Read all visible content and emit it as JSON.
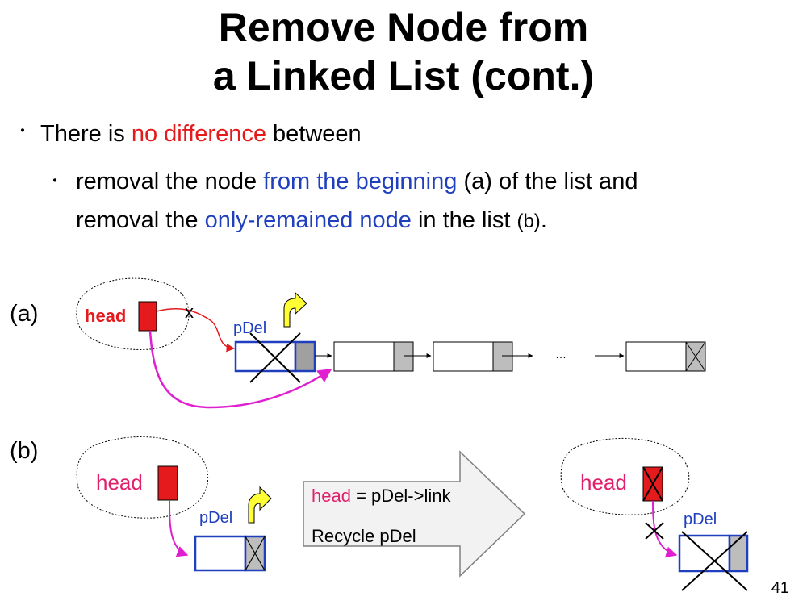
{
  "title": {
    "line1": "Remove Node from",
    "line2": "a Linked List (cont.)"
  },
  "bullets": {
    "marker": "・",
    "b1": {
      "pre": "There is ",
      "highlight": "no difference",
      "post": " between"
    },
    "b2": {
      "t1": "removal the node ",
      "h1": "from the beginning",
      "t2": " ",
      "a": "(a)",
      "t3": " of the list and",
      "t4": "removal the ",
      "h2": "only-remained node",
      "t5": " in the list ",
      "b": "(b)",
      "t6": "."
    }
  },
  "part_a": {
    "label": "(a)",
    "head_label": "head",
    "pdel_label": "pDel",
    "cut_mark": "x",
    "ellipsis": "…"
  },
  "part_b": {
    "label": "(b)",
    "head_before": "head",
    "pdel_before": "pDel",
    "arrow_line1_var": "head",
    "arrow_line1_rest": " = pDel->link",
    "arrow_line2": "Recycle pDel",
    "head_after": "head",
    "pdel_after": "pDel"
  },
  "colors": {
    "red": "#e41a1c",
    "blue": "#1f3fbf",
    "magenta": "#e020d0",
    "node_border": "#1f3fbf",
    "gray": "#bdbdbd",
    "yellow": "#ffff33"
  },
  "page_number": "41"
}
